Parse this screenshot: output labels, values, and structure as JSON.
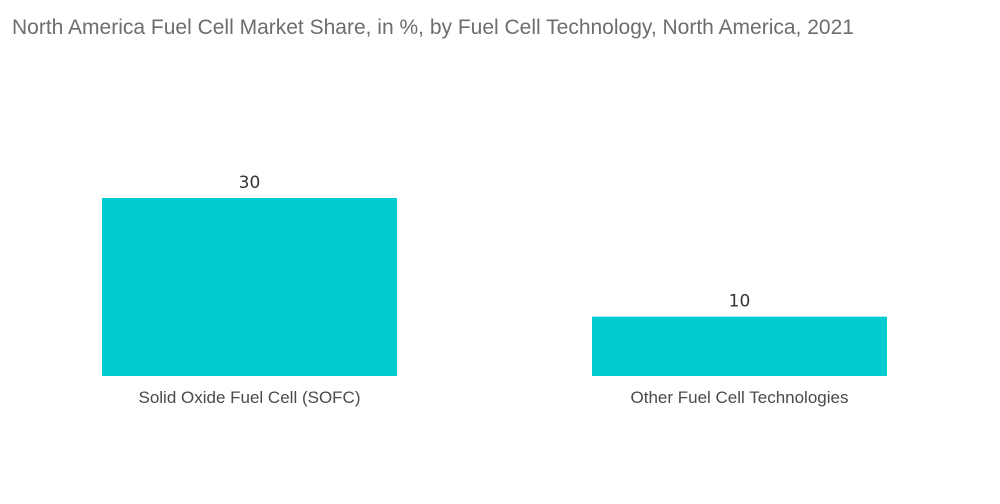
{
  "chart_data": {
    "type": "bar",
    "title": "North America Fuel Cell Market Share, in %, by Fuel Cell Technology, North America, 2021",
    "categories": [
      "Solid Oxide Fuel Cell (SOFC)",
      "Other Fuel Cell Technologies"
    ],
    "values": [
      30,
      10
    ],
    "value_labels": [
      "30",
      "10"
    ],
    "xlabel": "",
    "ylabel": "",
    "ylim": [
      0,
      30
    ],
    "grid": false,
    "legend": "none",
    "bar_color": "#00cccf"
  }
}
